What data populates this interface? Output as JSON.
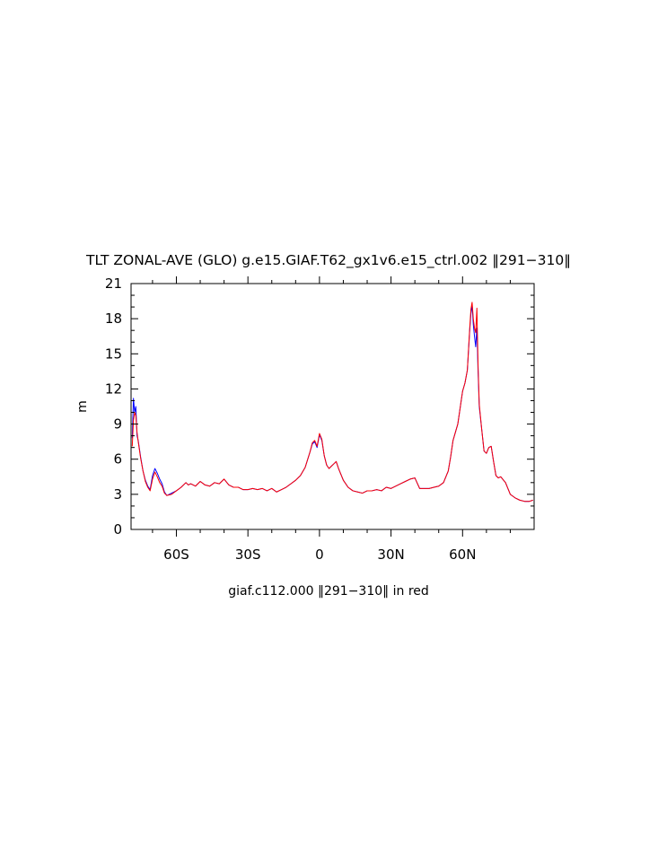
{
  "chart_data": {
    "type": "line",
    "title": "TLT ZONAL-AVE (GLO) g.e15.GIAF.T62_gx1v6.e15_ctrl.002 ‖291−310‖",
    "xlabel": "giaf.c112.000 ‖291−310‖ in red",
    "ylabel": "m",
    "xlim": [
      -79,
      90
    ],
    "ylim": [
      0,
      21
    ],
    "grid": false,
    "x_ticks": [
      -60,
      -30,
      0,
      30,
      60
    ],
    "x_tick_labels": [
      "60S",
      "30S",
      "0",
      "30N",
      "60N"
    ],
    "y_ticks": [
      0,
      3,
      6,
      9,
      12,
      15,
      18,
      21
    ],
    "y_tick_labels": [
      "0",
      "3",
      "6",
      "9",
      "12",
      "15",
      "18",
      "21"
    ],
    "series": [
      {
        "color": "#0000ff",
        "x": [
          -78.5,
          -78,
          -77.5,
          -77,
          -76.5,
          -76,
          -75,
          -74,
          -73,
          -72,
          -71,
          -70,
          -69,
          -68,
          -67,
          -66,
          -65,
          -64,
          -62,
          -60,
          -58,
          -56,
          -55,
          -54,
          -52,
          -50,
          -48,
          -46,
          -44,
          -42,
          -40,
          -38,
          -36,
          -34,
          -32,
          -30,
          -28,
          -26,
          -24,
          -22,
          -20,
          -18,
          -16,
          -14,
          -12,
          -10,
          -8,
          -6,
          -4,
          -3,
          -2,
          -1,
          0,
          1,
          2,
          3,
          4,
          5,
          6,
          7,
          8,
          10,
          12,
          14,
          16,
          18,
          20,
          22,
          24,
          26,
          28,
          30,
          32,
          34,
          36,
          38,
          40,
          42,
          44,
          46,
          48,
          50,
          52,
          54,
          55,
          56,
          57,
          58,
          59,
          60,
          61,
          62,
          63,
          63.5,
          64,
          64.5,
          65,
          65.5,
          66,
          66.5,
          67,
          68,
          69,
          70,
          71,
          72,
          73,
          74,
          75,
          76,
          78,
          80,
          82,
          84,
          86,
          88,
          89.5
        ],
        "y": [
          7.8,
          11.2,
          10.0,
          10.5,
          8.0,
          7.6,
          6.2,
          5.0,
          4.2,
          3.7,
          3.4,
          4.6,
          5.2,
          4.8,
          4.3,
          3.9,
          3.2,
          2.9,
          3.1,
          3.3,
          3.6,
          4.0,
          3.8,
          3.9,
          3.7,
          4.1,
          3.8,
          3.7,
          4.0,
          3.9,
          4.3,
          3.8,
          3.6,
          3.6,
          3.4,
          3.4,
          3.5,
          3.4,
          3.5,
          3.3,
          3.5,
          3.2,
          3.4,
          3.6,
          3.9,
          4.2,
          4.6,
          5.3,
          6.6,
          7.3,
          7.5,
          7.0,
          8.1,
          7.6,
          6.3,
          5.5,
          5.2,
          5.4,
          5.6,
          5.8,
          5.2,
          4.2,
          3.6,
          3.3,
          3.2,
          3.1,
          3.3,
          3.3,
          3.4,
          3.3,
          3.6,
          3.5,
          3.7,
          3.9,
          4.1,
          4.3,
          4.4,
          3.5,
          3.5,
          3.5,
          3.6,
          3.7,
          4.0,
          5.0,
          6.2,
          7.6,
          8.3,
          9.0,
          10.4,
          11.8,
          12.5,
          13.6,
          17.0,
          18.4,
          19.2,
          17.5,
          16.5,
          15.6,
          17.2,
          13.5,
          10.5,
          8.6,
          6.7,
          6.5,
          7.0,
          7.1,
          5.8,
          4.6,
          4.4,
          4.5,
          4.0,
          3.0,
          2.7,
          2.5,
          2.4,
          2.4,
          2.5
        ]
      },
      {
        "color": "#ff0000",
        "x": [
          -78.5,
          -78,
          -77.5,
          -77,
          -76.5,
          -76,
          -75,
          -74,
          -73,
          -72,
          -71,
          -70,
          -69,
          -68,
          -67,
          -66,
          -65,
          -64,
          -62,
          -60,
          -58,
          -56,
          -55,
          -54,
          -52,
          -50,
          -48,
          -46,
          -44,
          -42,
          -40,
          -38,
          -36,
          -34,
          -32,
          -30,
          -28,
          -26,
          -24,
          -22,
          -20,
          -18,
          -16,
          -14,
          -12,
          -10,
          -8,
          -6,
          -4,
          -3,
          -2,
          -1,
          0,
          1,
          2,
          3,
          4,
          5,
          6,
          7,
          8,
          10,
          12,
          14,
          16,
          18,
          20,
          22,
          24,
          26,
          28,
          30,
          32,
          34,
          36,
          38,
          40,
          42,
          44,
          46,
          48,
          50,
          52,
          54,
          55,
          56,
          57,
          58,
          59,
          60,
          61,
          62,
          63,
          63.5,
          64,
          64.5,
          65,
          65.5,
          66,
          66.5,
          67,
          68,
          69,
          70,
          71,
          72,
          73,
          74,
          75,
          76,
          78,
          80,
          82,
          84,
          86,
          88,
          89.5
        ],
        "y": [
          7.1,
          9.3,
          10.0,
          9.7,
          8.3,
          7.5,
          6.1,
          5.0,
          4.1,
          3.6,
          3.3,
          4.3,
          4.9,
          4.5,
          4.0,
          3.7,
          3.1,
          2.9,
          3.0,
          3.3,
          3.6,
          4.0,
          3.8,
          3.9,
          3.7,
          4.1,
          3.8,
          3.7,
          4.0,
          3.9,
          4.3,
          3.8,
          3.6,
          3.6,
          3.4,
          3.4,
          3.5,
          3.4,
          3.5,
          3.3,
          3.5,
          3.2,
          3.4,
          3.6,
          3.9,
          4.2,
          4.6,
          5.3,
          6.6,
          7.4,
          7.6,
          7.1,
          8.2,
          7.7,
          6.3,
          5.5,
          5.2,
          5.4,
          5.6,
          5.8,
          5.2,
          4.2,
          3.6,
          3.3,
          3.2,
          3.1,
          3.3,
          3.3,
          3.4,
          3.3,
          3.6,
          3.5,
          3.7,
          3.9,
          4.1,
          4.3,
          4.4,
          3.5,
          3.5,
          3.5,
          3.6,
          3.7,
          4.0,
          5.0,
          6.2,
          7.6,
          8.3,
          9.0,
          10.4,
          11.8,
          12.5,
          13.6,
          17.2,
          18.8,
          19.4,
          18.0,
          17.2,
          16.8,
          18.9,
          14.0,
          10.7,
          8.6,
          6.7,
          6.5,
          7.0,
          7.1,
          5.8,
          4.6,
          4.4,
          4.5,
          4.0,
          3.0,
          2.7,
          2.5,
          2.4,
          2.4,
          2.5
        ]
      }
    ]
  }
}
